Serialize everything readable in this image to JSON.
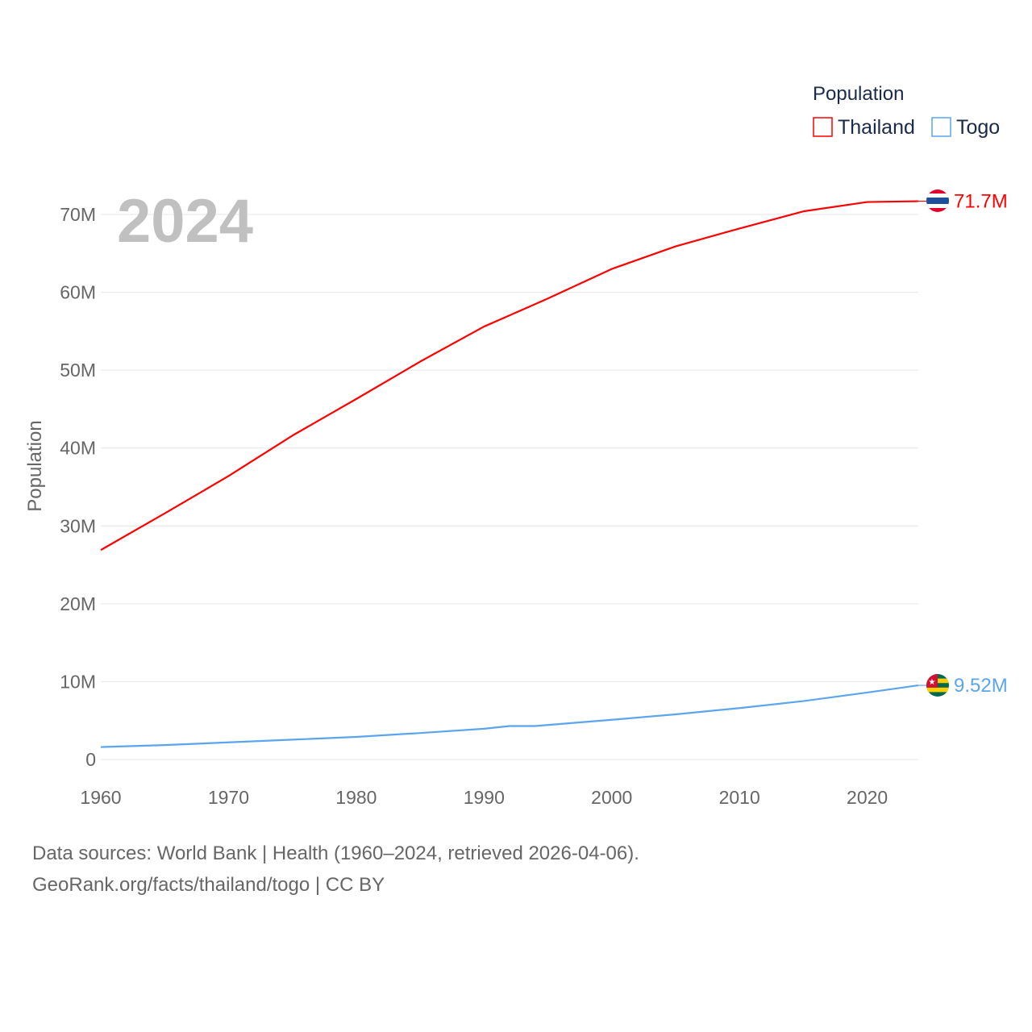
{
  "chart_data": {
    "type": "line",
    "title": "",
    "year_label": "2024",
    "xlabel": "",
    "ylabel": "Population",
    "xlim": [
      1960,
      2024
    ],
    "ylim": [
      0,
      70000000
    ],
    "x_ticks": [
      1960,
      1970,
      1980,
      1990,
      2000,
      2010,
      2020
    ],
    "x_tick_labels": [
      "1960",
      "1970",
      "1980",
      "1990",
      "2000",
      "2010",
      "2020"
    ],
    "y_ticks": [
      0,
      10000000,
      20000000,
      30000000,
      40000000,
      50000000,
      60000000,
      70000000
    ],
    "y_tick_labels": [
      "0",
      "10M",
      "20M",
      "30M",
      "40M",
      "50M",
      "60M",
      "70M"
    ],
    "grid": true,
    "legend": {
      "title": "Population",
      "placement": "top-right"
    },
    "series": [
      {
        "name": "Thailand",
        "color": "#ff0000",
        "end_label": "71.7M",
        "x": [
          1960,
          1965,
          1970,
          1975,
          1980,
          1985,
          1990,
          1995,
          2000,
          2005,
          2010,
          2015,
          2020,
          2024
        ],
        "values": [
          26900000,
          31600000,
          36400000,
          41600000,
          46300000,
          51100000,
          55600000,
          59200000,
          63000000,
          65900000,
          68200000,
          70400000,
          71600000,
          71700000
        ]
      },
      {
        "name": "Togo",
        "color": "#5aa5ee",
        "end_label": "9.52M",
        "x": [
          1960,
          1965,
          1970,
          1975,
          1980,
          1985,
          1990,
          1992,
          1994,
          2000,
          2005,
          2010,
          2015,
          2020,
          2024
        ],
        "values": [
          1600000,
          1850000,
          2200000,
          2550000,
          2900000,
          3400000,
          3950000,
          4300000,
          4300000,
          5100000,
          5800000,
          6600000,
          7500000,
          8600000,
          9520000
        ]
      }
    ]
  },
  "footer": {
    "line1": "Data sources: World Bank | Health (1960–2024, retrieved 2026-04-06).",
    "line2": "GeoRank.org/facts/thailand/togo | CC BY"
  }
}
